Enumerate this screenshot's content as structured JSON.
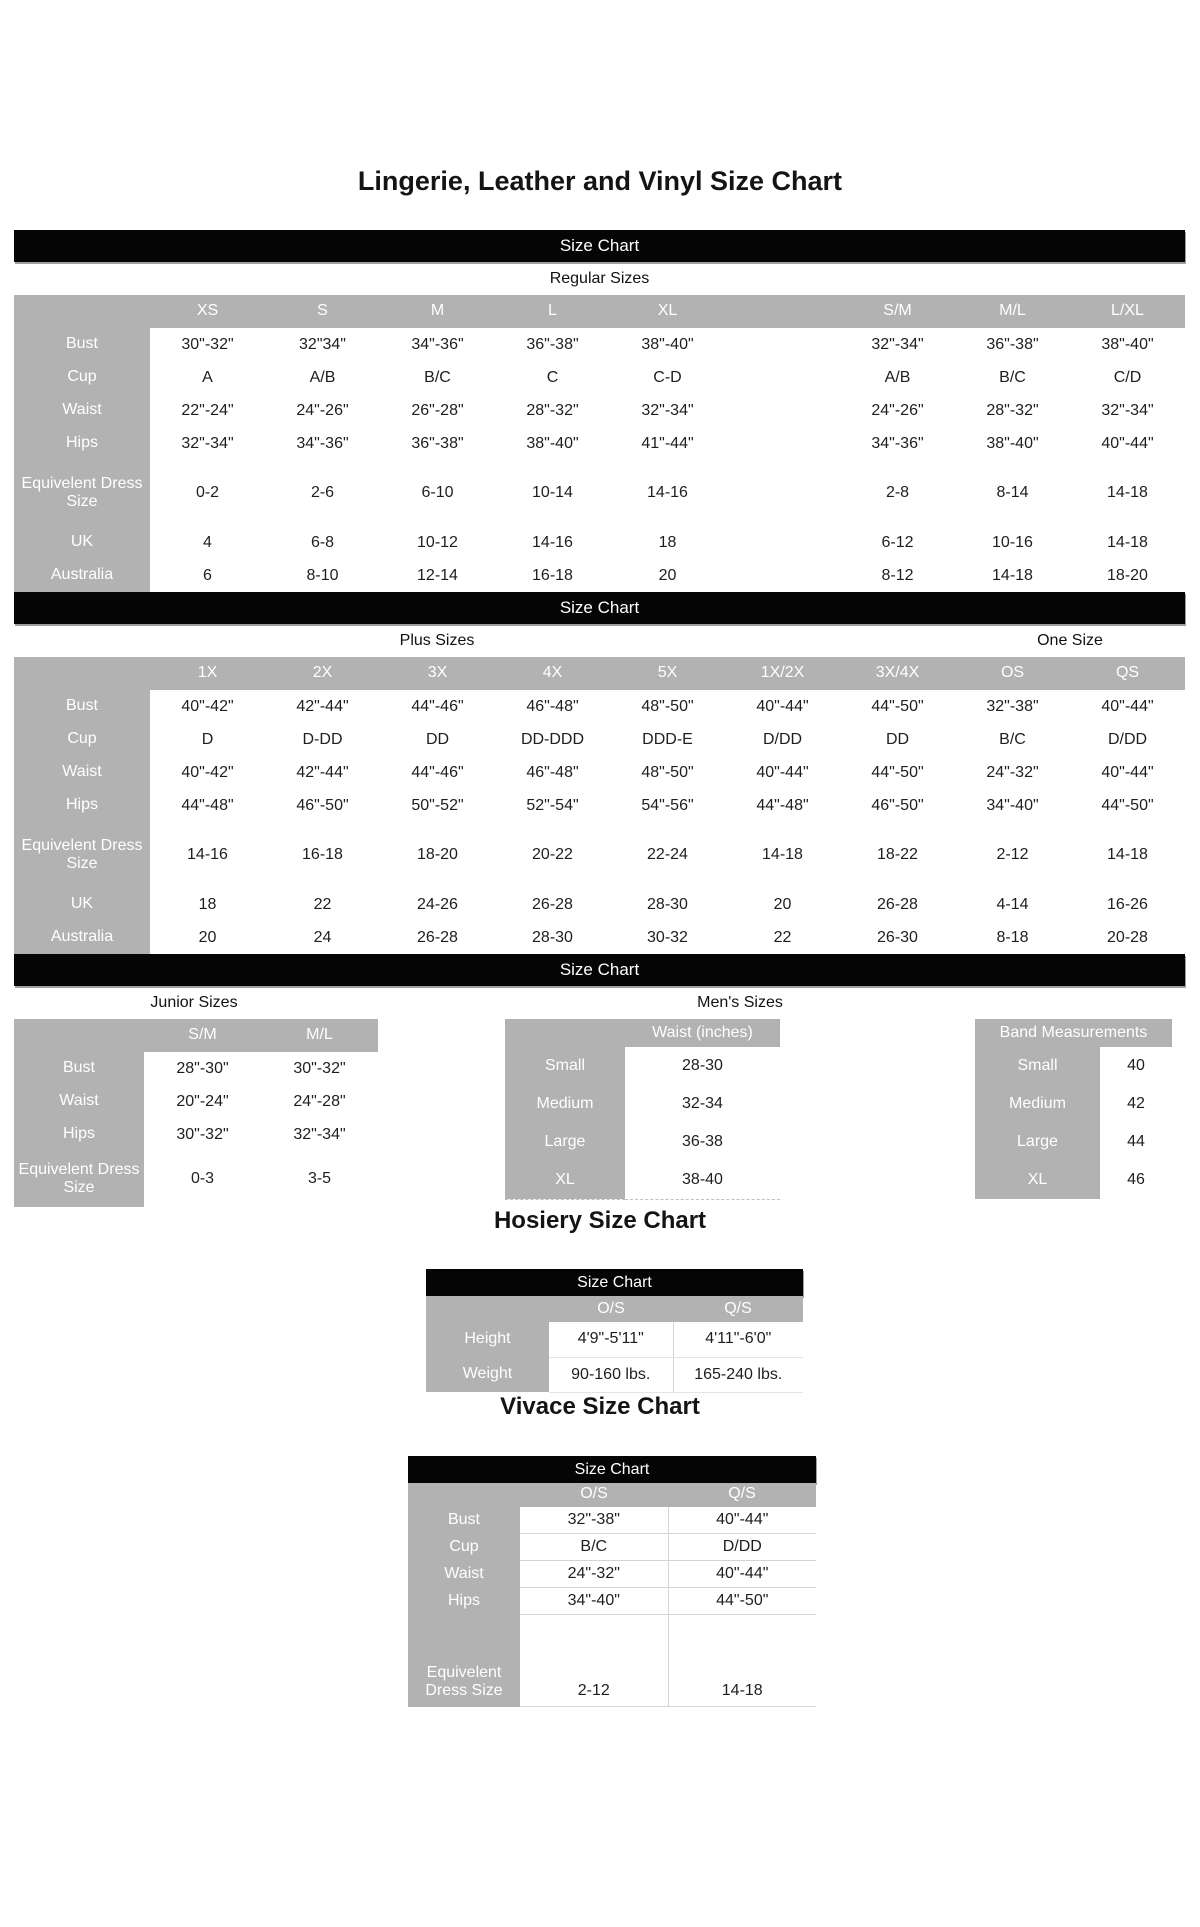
{
  "page": {
    "title": "Lingerie, Leather and Vinyl Size Chart",
    "bar_label": "Size Chart"
  },
  "colors": {
    "bar_bg": "#050505",
    "bar_text": "#ffffff",
    "header_bg": "#b2b2b2",
    "header_text": "#ffffff",
    "data_text": "#1e1e1e"
  },
  "regular": {
    "section_label": "Regular Sizes",
    "columns": [
      "XS",
      "S",
      "M",
      "L",
      "XL",
      "",
      "S/M",
      "M/L",
      "L/XL"
    ],
    "rows": [
      {
        "label": "Bust",
        "values": [
          "30\"-32\"",
          "32\"34\"",
          "34\"-36\"",
          "36\"-38\"",
          "38\"-40\"",
          "",
          "32\"-34\"",
          "36\"-38\"",
          "38\"-40\""
        ]
      },
      {
        "label": "Cup",
        "values": [
          "A",
          "A/B",
          "B/C",
          "C",
          "C-D",
          "",
          "A/B",
          "B/C",
          "C/D"
        ]
      },
      {
        "label": "Waist",
        "values": [
          "22\"-24\"",
          "24\"-26\"",
          "26\"-28\"",
          "28\"-32\"",
          "32\"-34\"",
          "",
          "24\"-26\"",
          "28\"-32\"",
          "32\"-34\""
        ]
      },
      {
        "label": "Hips",
        "values": [
          "32\"-34\"",
          "34\"-36\"",
          "36\"-38\"",
          "38\"-40\"",
          "41\"-44\"",
          "",
          "34\"-36\"",
          "38\"-40\"",
          "40\"-44\""
        ]
      },
      {
        "label": "Equivelent Dress Size",
        "values": [
          "0-2",
          "2-6",
          "6-10",
          "10-14",
          "14-16",
          "",
          "2-8",
          "8-14",
          "14-18"
        ]
      },
      {
        "label": "UK",
        "values": [
          "4",
          "6-8",
          "10-12",
          "14-16",
          "18",
          "",
          "6-12",
          "10-16",
          "14-18"
        ]
      },
      {
        "label": "Australia",
        "values": [
          "6",
          "8-10",
          "12-14",
          "16-18",
          "20",
          "",
          "8-12",
          "14-18",
          "18-20"
        ]
      }
    ]
  },
  "plus": {
    "section_label": "Plus Sizes",
    "one_size_label": "One Size",
    "columns": [
      "1X",
      "2X",
      "3X",
      "4X",
      "5X",
      "1X/2X",
      "3X/4X",
      "OS",
      "QS"
    ],
    "rows": [
      {
        "label": "Bust",
        "values": [
          "40\"-42\"",
          "42\"-44\"",
          "44\"-46\"",
          "46\"-48\"",
          "48\"-50\"",
          "40\"-44\"",
          "44\"-50\"",
          "32\"-38\"",
          "40\"-44\""
        ]
      },
      {
        "label": "Cup",
        "values": [
          "D",
          "D-DD",
          "DD",
          "DD-DDD",
          "DDD-E",
          "D/DD",
          "DD",
          "B/C",
          "D/DD"
        ]
      },
      {
        "label": "Waist",
        "values": [
          "40\"-42\"",
          "42\"-44\"",
          "44\"-46\"",
          "46\"-48\"",
          "48\"-50\"",
          "40\"-44\"",
          "44\"-50\"",
          "24\"-32\"",
          "40\"-44\""
        ]
      },
      {
        "label": "Hips",
        "values": [
          "44\"-48\"",
          "46\"-50\"",
          "50\"-52\"",
          "52\"-54\"",
          "54\"-56\"",
          "44\"-48\"",
          "46\"-50\"",
          "34\"-40\"",
          "44\"-50\""
        ]
      },
      {
        "label": "Equivelent Dress Size",
        "values": [
          "14-16",
          "16-18",
          "18-20",
          "20-22",
          "22-24",
          "14-18",
          "18-22",
          "2-12",
          "14-18"
        ]
      },
      {
        "label": "UK",
        "values": [
          "18",
          "22",
          "24-26",
          "26-28",
          "28-30",
          "20",
          "26-28",
          "4-14",
          "16-26"
        ]
      },
      {
        "label": "Australia",
        "values": [
          "20",
          "24",
          "26-28",
          "28-30",
          "30-32",
          "22",
          "26-30",
          "8-18",
          "20-28"
        ]
      }
    ]
  },
  "junior": {
    "section_label": "Junior Sizes",
    "columns": [
      "S/M",
      "M/L"
    ],
    "rows": [
      {
        "label": "Bust",
        "values": [
          "28\"-30\"",
          "30\"-32\""
        ]
      },
      {
        "label": "Waist",
        "values": [
          "20\"-24\"",
          "24\"-28\""
        ]
      },
      {
        "label": "Hips",
        "values": [
          "30\"-32\"",
          "32\"-34\""
        ]
      },
      {
        "label": "Equivelent Dress Size",
        "values": [
          "0-3",
          "3-5"
        ]
      }
    ]
  },
  "mens": {
    "section_label": "Men's Sizes",
    "waist_table": {
      "header": "Waist (inches)",
      "rows": [
        {
          "label": "Small",
          "values": [
            "28-30"
          ]
        },
        {
          "label": "Medium",
          "values": [
            "32-34"
          ]
        },
        {
          "label": "Large",
          "values": [
            "36-38"
          ]
        },
        {
          "label": "XL",
          "values": [
            "38-40"
          ]
        }
      ]
    },
    "band_table": {
      "header": "Band Measurements",
      "rows": [
        {
          "label": "Small",
          "values": [
            "40"
          ]
        },
        {
          "label": "Medium",
          "values": [
            "42"
          ]
        },
        {
          "label": "Large",
          "values": [
            "44"
          ]
        },
        {
          "label": "XL",
          "values": [
            "46"
          ]
        }
      ]
    }
  },
  "hosiery": {
    "title": "Hosiery Size Chart",
    "columns": [
      "O/S",
      "Q/S"
    ],
    "rows": [
      {
        "label": "Height",
        "values": [
          "4'9\"-5'11\"",
          "4'11\"-6'0\""
        ]
      },
      {
        "label": "Weight",
        "values": [
          "90-160 lbs.",
          "165-240 lbs."
        ]
      }
    ]
  },
  "vivace": {
    "title": "Vivace Size Chart",
    "columns": [
      "O/S",
      "Q/S"
    ],
    "rows": [
      {
        "label": "Bust",
        "values": [
          "32\"-38\"",
          "40\"-44\""
        ]
      },
      {
        "label": "Cup",
        "values": [
          "B/C",
          "D/DD"
        ]
      },
      {
        "label": "Waist",
        "values": [
          "24\"-32\"",
          "40\"-44\""
        ]
      },
      {
        "label": "Hips",
        "values": [
          "34\"-40\"",
          "44\"-50\""
        ]
      },
      {
        "label": "Equivelent Dress Size",
        "values": [
          "2-12",
          "14-18"
        ]
      }
    ]
  }
}
